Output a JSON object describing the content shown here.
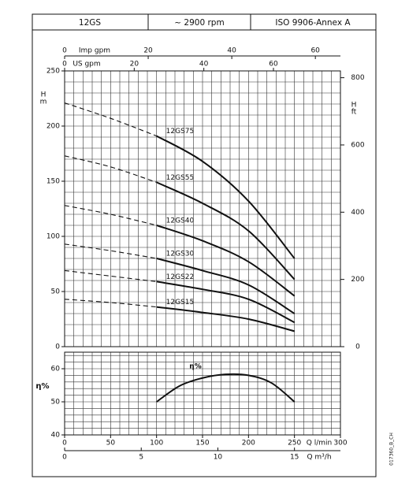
{
  "header": [
    "12GS",
    "~ 2900 rpm",
    "ISO 9906-Annex A"
  ],
  "code": "017360_B_CH",
  "chart_data": [
    {
      "type": "line",
      "ylabel": "H",
      "yunit": "m",
      "y2label": "H",
      "y2unit": "ft",
      "x": [
        0,
        50,
        100,
        150,
        200,
        250
      ],
      "series": [
        {
          "name": "12GS75",
          "color": "#111111",
          "values": [
            221,
            207,
            191,
            168,
            132,
            80
          ]
        },
        {
          "name": "12GS55",
          "color": "#111111",
          "values": [
            173,
            163,
            149,
            130,
            105,
            61
          ]
        },
        {
          "name": "12GS40",
          "color": "#111111",
          "values": [
            128,
            120,
            110,
            96,
            77,
            46
          ]
        },
        {
          "name": "12GS30",
          "color": "#111111",
          "values": [
            93,
            87,
            80,
            69,
            56,
            30
          ]
        },
        {
          "name": "12GS22",
          "color": "#111111",
          "values": [
            69,
            64,
            59,
            52,
            43,
            22
          ]
        },
        {
          "name": "12GS15",
          "color": "#111111",
          "values": [
            43,
            40,
            36,
            31,
            25,
            14
          ]
        }
      ],
      "xlim": [
        0,
        300
      ],
      "ylim": [
        0,
        250
      ],
      "yticks": [
        0,
        50,
        100,
        150,
        200,
        250
      ],
      "y2lim": [
        0,
        820.2
      ],
      "y2ticks": [
        0,
        200,
        400,
        600,
        800
      ],
      "top_axes": [
        {
          "label": "Imp gpm",
          "lim": [
            0,
            66
          ],
          "ticks": [
            0,
            20,
            40,
            60
          ]
        },
        {
          "label": "US gpm",
          "lim": [
            0,
            79.25
          ],
          "ticks": [
            0,
            20,
            40,
            60
          ]
        }
      ],
      "grid": true
    },
    {
      "type": "line",
      "ylabel": "η%",
      "x": [
        100,
        125,
        150,
        175,
        200,
        225,
        250
      ],
      "series": [
        {
          "name": "η%",
          "color": "#111111",
          "values": [
            50,
            54.8,
            57.2,
            58.3,
            58,
            55.7,
            50
          ]
        }
      ],
      "xlim": [
        0,
        300
      ],
      "ylim": [
        40,
        65
      ],
      "yticks": [
        40,
        50,
        60
      ],
      "bottom_axes": [
        {
          "label": "Q l/min",
          "lim": [
            0,
            300
          ],
          "ticks": [
            0,
            50,
            100,
            150,
            200,
            250,
            300
          ]
        },
        {
          "label": "Q m³/h",
          "lim": [
            0,
            18
          ],
          "ticks": [
            0,
            5,
            10,
            15
          ]
        }
      ],
      "grid": true
    }
  ]
}
